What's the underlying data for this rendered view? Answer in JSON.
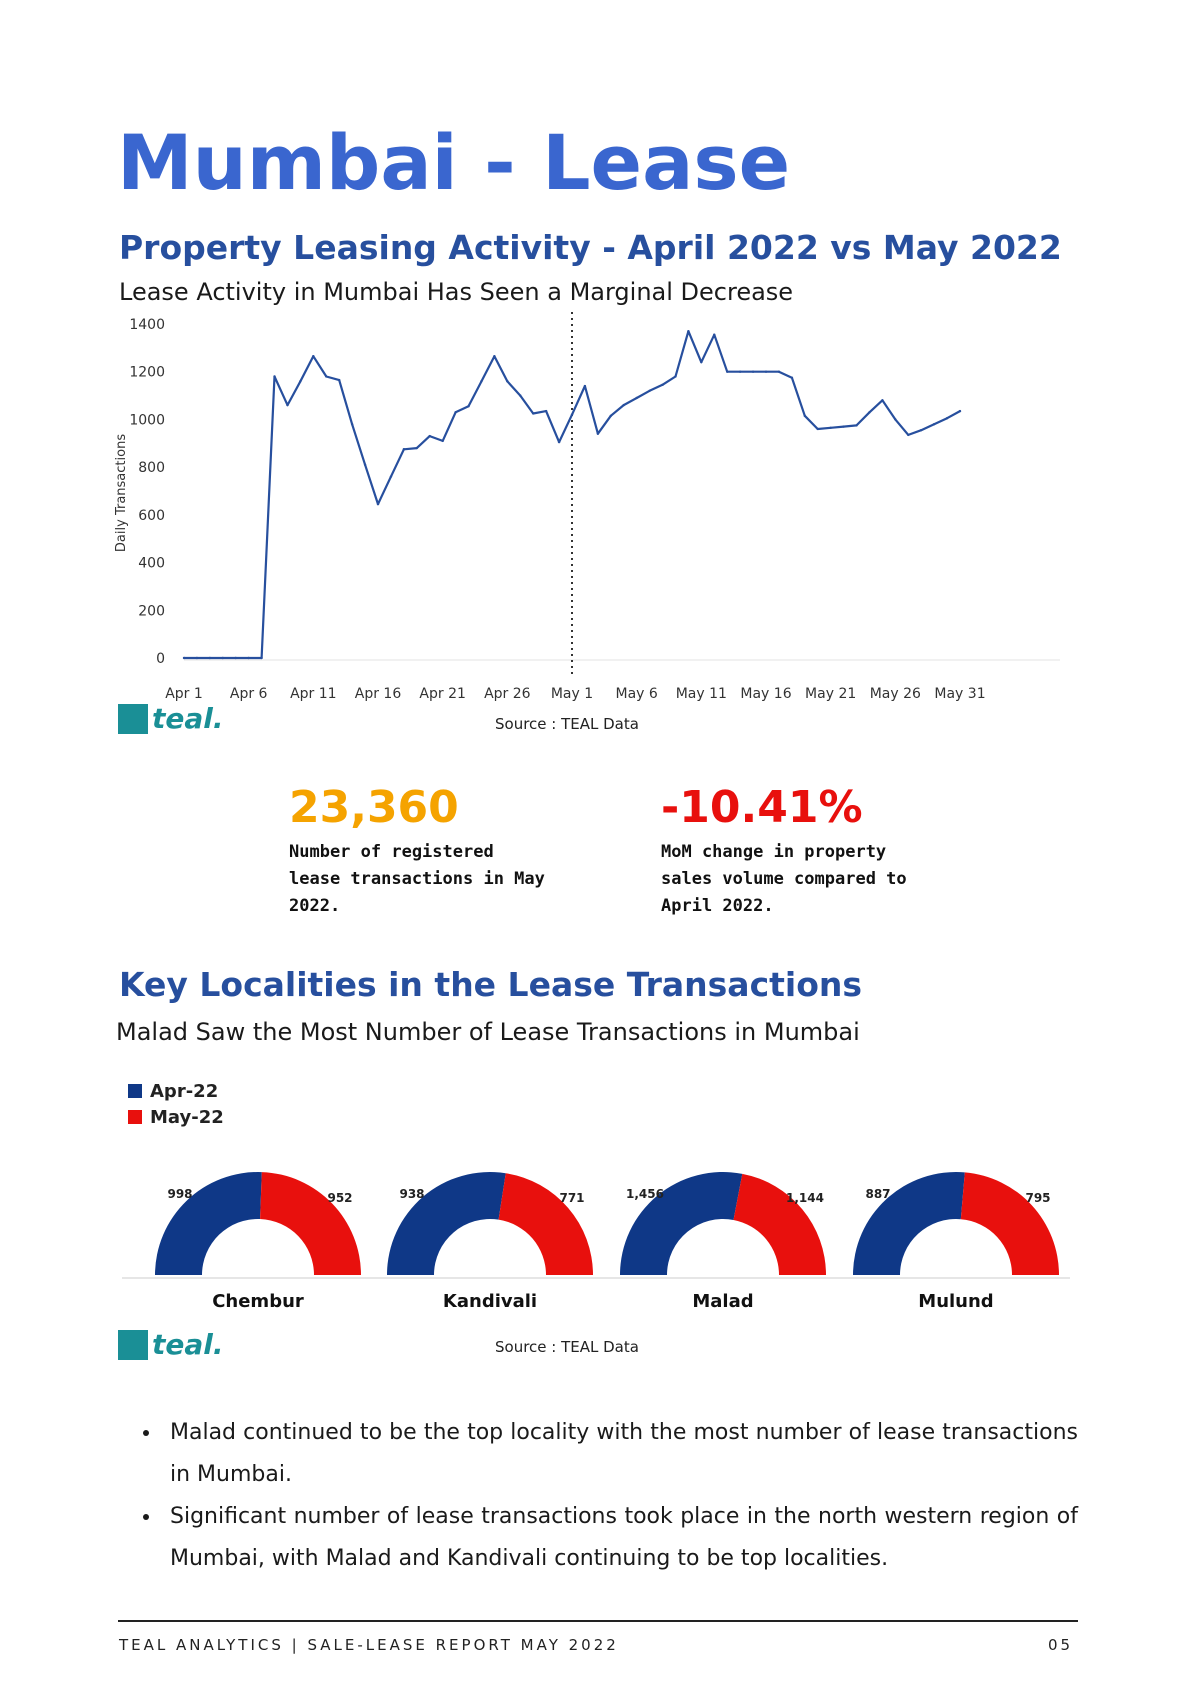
{
  "page": {
    "title": "Mumbai - Lease",
    "section1": {
      "heading": "Property Leasing Activity - April 2022 vs May 2022",
      "subheading": "Lease Activity in Mumbai Has Seen a Marginal Decrease",
      "source": "Source : TEAL Data"
    },
    "stats": [
      {
        "value": "23,360",
        "color": "#f5a300",
        "description": "Number of registered lease transactions in May 2022."
      },
      {
        "value": "-10.41%",
        "color": "#e8100d",
        "description": "MoM change in property sales volume compared to April 2022."
      }
    ],
    "section2": {
      "heading": "Key Localities in the Lease Transactions",
      "subheading": "Malad Saw the Most Number of Lease Transactions in Mumbai",
      "source": "Source : TEAL Data"
    },
    "bullets": [
      "Malad continued to be the top locality with the most number of lease transactions in Mumbai.",
      "Significant number of lease transactions took place in the north western region of Mumbai, with Malad and Kandivali continuing to be top localities."
    ],
    "logo": {
      "text": "teal."
    },
    "footer": {
      "left": "TEAL ANALYTICS | SALE-LEASE REPORT MAY 2022",
      "page_number": "05"
    }
  },
  "chart_data": [
    {
      "type": "line",
      "ylabel": "Daily Transactions",
      "xlabel": "",
      "ylim": [
        0,
        1400
      ],
      "yticks": [
        0,
        200,
        400,
        600,
        800,
        1000,
        1200,
        1400
      ],
      "xtick_labels": [
        "Apr 1",
        "Apr 6",
        "Apr 11",
        "Apr 16",
        "Apr 21",
        "Apr 26",
        "May 1",
        "May 6",
        "May 11",
        "May 16",
        "May 21",
        "May 26",
        "May 31"
      ],
      "xtick_days": [
        1,
        6,
        11,
        16,
        21,
        26,
        31,
        36,
        41,
        46,
        51,
        56,
        61
      ],
      "divider_day": 31,
      "divider_style": "dotted",
      "line_color": "#274f9e",
      "grid": false,
      "x": [
        1,
        2,
        3,
        4,
        5,
        6,
        7,
        8,
        9,
        10,
        11,
        12,
        13,
        14,
        15,
        16,
        17,
        18,
        19,
        20,
        21,
        22,
        23,
        24,
        25,
        26,
        27,
        28,
        29,
        30,
        31,
        32,
        33,
        34,
        35,
        36,
        37,
        38,
        39,
        40,
        41,
        42,
        43,
        44,
        45,
        46,
        47,
        48,
        49,
        50,
        51,
        52,
        53,
        54,
        55,
        56,
        57,
        58,
        59,
        60,
        61
      ],
      "x_labels": [
        "Apr 1",
        "Apr 2",
        "Apr 3",
        "Apr 4",
        "Apr 5",
        "Apr 6",
        "Apr 7",
        "Apr 8",
        "Apr 9",
        "Apr 10",
        "Apr 11",
        "Apr 12",
        "Apr 13",
        "Apr 14",
        "Apr 15",
        "Apr 16",
        "Apr 17",
        "Apr 18",
        "Apr 19",
        "Apr 20",
        "Apr 21",
        "Apr 22",
        "Apr 23",
        "Apr 24",
        "Apr 25",
        "Apr 26",
        "Apr 27",
        "Apr 28",
        "Apr 29",
        "Apr 30",
        "May 1",
        "May 2",
        "May 3",
        "May 4",
        "May 5",
        "May 6",
        "May 7",
        "May 8",
        "May 9",
        "May 10",
        "May 11",
        "May 12",
        "May 13",
        "May 14",
        "May 15",
        "May 16",
        "May 17",
        "May 18",
        "May 19",
        "May 20",
        "May 21",
        "May 22",
        "May 23",
        "May 24",
        "May 25",
        "May 26",
        "May 27",
        "May 28",
        "May 29",
        "May 30",
        "May 31"
      ],
      "series": [
        {
          "values": [
            0,
            0,
            0,
            0,
            0,
            0,
            0,
            1180,
            1060,
            1160,
            1265,
            1180,
            1165,
            980,
            810,
            645,
            760,
            875,
            880,
            930,
            910,
            1030,
            1055,
            1160,
            1265,
            1160,
            1100,
            1025,
            1035,
            905,
            1020,
            1140,
            940,
            1015,
            1060,
            1090,
            1120,
            1145,
            1180,
            1370,
            1240,
            1355,
            1200,
            1200,
            1200,
            1200,
            1200,
            1175,
            1015,
            960,
            965,
            970,
            975,
            1030,
            1080,
            1000,
            935,
            955,
            980,
            1005,
            1035
          ]
        }
      ]
    },
    {
      "type": "pie",
      "subtype": "half-donut",
      "legend": [
        "Apr-22",
        "May-22"
      ],
      "legend_position": "top-left",
      "colors": [
        "#0f3887",
        "#e8100d"
      ],
      "categories": [
        "Chembur",
        "Kandivali",
        "Malad",
        "Mulund"
      ],
      "series": [
        {
          "name": "Apr-22",
          "values": [
            998,
            938,
            1456,
            887
          ]
        },
        {
          "name": "May-22",
          "values": [
            952,
            771,
            1144,
            795
          ]
        }
      ],
      "data_labels": [
        [
          "998",
          "952"
        ],
        [
          "938",
          "771"
        ],
        [
          "1,456",
          "1,144"
        ],
        [
          "887",
          "795"
        ]
      ]
    }
  ]
}
